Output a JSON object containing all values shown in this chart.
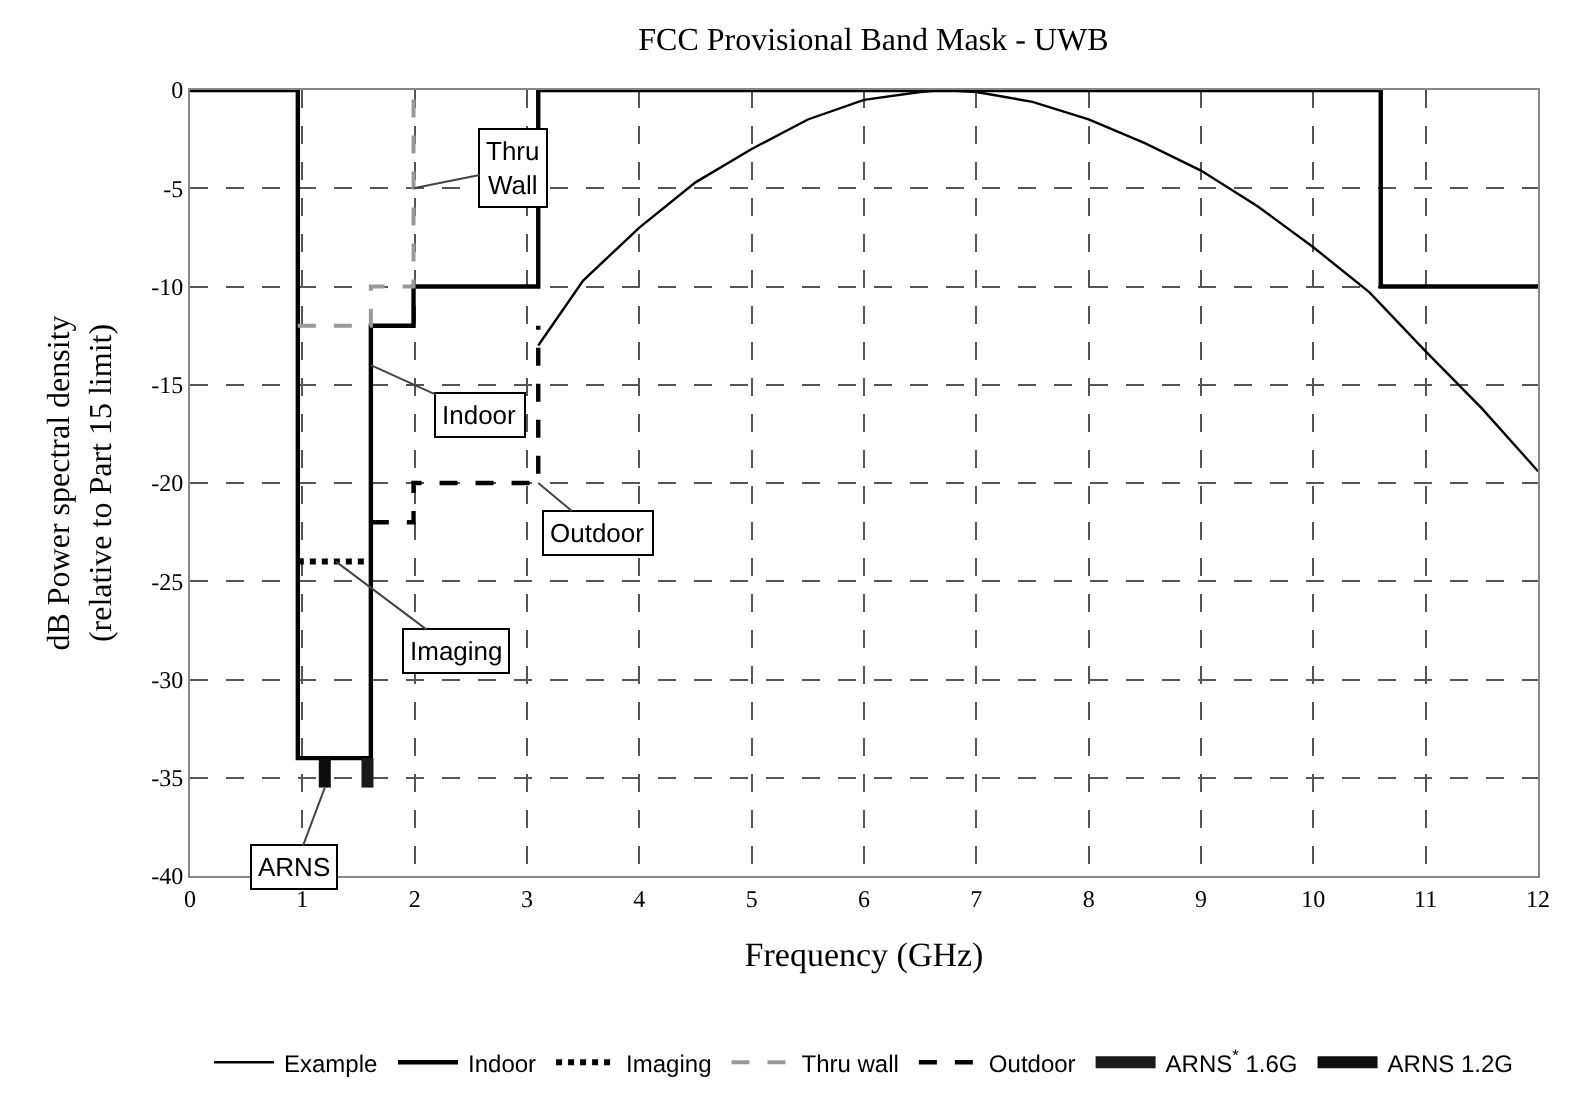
{
  "chart_data": {
    "type": "line",
    "title": "FCC Provisional Band Mask - UWB",
    "xlabel": "Frequency (GHz)",
    "ylabel": "dB Power spectral density\n(relative to Part 15 limit)",
    "xlim": [
      0,
      12
    ],
    "xticks": [
      0,
      1,
      2,
      3,
      4,
      5,
      6,
      7,
      8,
      9,
      10,
      11,
      12
    ],
    "ylim": [
      -40,
      0
    ],
    "yticks": [
      0,
      -5,
      -10,
      -15,
      -20,
      -25,
      -30,
      -35,
      -40
    ],
    "grid": true,
    "legend": "bottom",
    "marker": "none",
    "series": [
      {
        "name": "Example",
        "color": "#000000",
        "line_style": "solid",
        "x": [
          3.1,
          3.5,
          4,
          4.5,
          5,
          5.5,
          6,
          6.5,
          6.7,
          7,
          7.5,
          8,
          8.5,
          9,
          9.5,
          10,
          10.5,
          11,
          11.5,
          12
        ],
        "values": [
          -13,
          -9.7,
          -7,
          -4.7,
          -3,
          -1.5,
          -0.5,
          -0.1,
          0,
          -0.1,
          -0.6,
          -1.5,
          -2.7,
          -4.1,
          -5.9,
          -8,
          -10.3,
          -13.3,
          -16.2,
          -19.4
        ]
      },
      {
        "name": "Indoor",
        "color": "#000000",
        "line_style": "solid",
        "x": [
          0,
          0.96,
          0.96,
          1.61,
          1.61,
          1.99,
          1.99,
          3.1,
          3.1,
          10.6,
          10.6,
          12
        ],
        "values": [
          0,
          0,
          -34,
          -34,
          -12,
          -12,
          -10,
          -10,
          0,
          0,
          -10,
          -10
        ]
      },
      {
        "name": "Imaging",
        "color": "#000000",
        "line_style": "dotted",
        "x": [
          0.96,
          1.61
        ],
        "values": [
          -24,
          -24
        ]
      },
      {
        "name": "Thru wall",
        "color": "#999999",
        "line_style": "dashed",
        "x": [
          0.96,
          1.61,
          1.61,
          1.99,
          1.99
        ],
        "values": [
          -12,
          -12,
          -10,
          -10,
          0
        ]
      },
      {
        "name": "Outdoor",
        "color": "#000000",
        "line_style": "dashed",
        "x": [
          1.61,
          1.99,
          1.99,
          3.1,
          3.1
        ],
        "values": [
          -22,
          -22,
          -20,
          -20,
          -12
        ]
      },
      {
        "name": "ARNS$^{*}$ 1.6G",
        "color": "#1a1a1a",
        "line_style": "solid",
        "x": [
          1.58,
          1.58
        ],
        "values": [
          -34,
          -35.5
        ]
      },
      {
        "name": "ARNS 1.2G",
        "color": "#0d0d0d",
        "line_style": "solid",
        "x": [
          1.2,
          1.2
        ],
        "values": [
          -34,
          -35.5
        ]
      }
    ],
    "annotations": [
      {
        "text": "Thru\nWall",
        "x": 1.99,
        "y": -5
      },
      {
        "text": "Indoor",
        "x": 1.61,
        "y": -14
      },
      {
        "text": "Outdoor",
        "x": 3.1,
        "y": -20
      },
      {
        "text": "Imaging",
        "x": 1.3,
        "y": -24
      },
      {
        "text": "ARNS",
        "x": 1.2,
        "y": -35.5
      }
    ]
  }
}
